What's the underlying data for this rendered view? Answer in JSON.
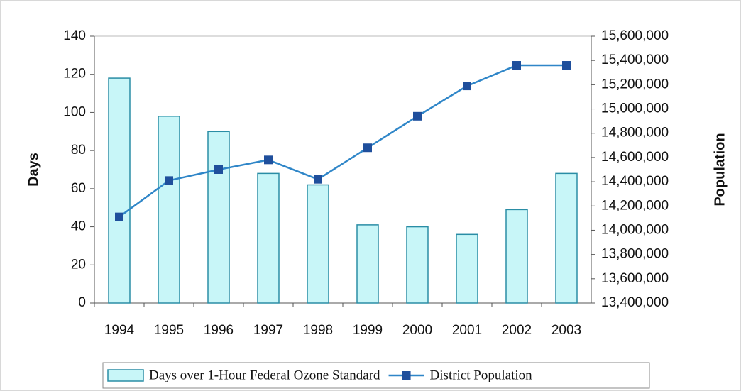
{
  "chart_data": {
    "type": "bar",
    "y_axis_label": "Days",
    "y2_axis_label": "Population",
    "categories": [
      "1994",
      "1995",
      "1996",
      "1997",
      "1998",
      "1999",
      "2000",
      "2001",
      "2002",
      "2003"
    ],
    "series": [
      {
        "name": "Days over 1-Hour Federal Ozone Standard",
        "type": "bar",
        "color": "#c8f6f8",
        "values": [
          118,
          98,
          90,
          68,
          62,
          41,
          40,
          36,
          49,
          68
        ]
      },
      {
        "name": "District Population",
        "type": "line",
        "axis": "y2",
        "color": "#2f86c8",
        "values": [
          14110000,
          14410000,
          14500000,
          14580000,
          14420000,
          14680000,
          14940000,
          15190000,
          15360000,
          15360000
        ]
      }
    ],
    "ylim": [
      0,
      140
    ],
    "yticks": [
      0,
      20,
      40,
      60,
      80,
      100,
      120,
      140
    ],
    "y2lim": [
      13400000,
      15600000
    ],
    "y2ticks": [
      {
        "value": 13400000,
        "label": "13,400,000"
      },
      {
        "value": 13600000,
        "label": "13,600,000"
      },
      {
        "value": 13800000,
        "label": "13,800,000"
      },
      {
        "value": 14000000,
        "label": "14,000,000"
      },
      {
        "value": 14200000,
        "label": "14,200,000"
      },
      {
        "value": 14400000,
        "label": "14,400,000"
      },
      {
        "value": 14600000,
        "label": "14,600,000"
      },
      {
        "value": 14800000,
        "label": "14,800,000"
      },
      {
        "value": 15000000,
        "label": "15,000,000"
      },
      {
        "value": 15200000,
        "label": "15,200,000"
      },
      {
        "value": 15400000,
        "label": "15,400,000"
      },
      {
        "value": 15600000,
        "label": "15,600,000"
      }
    ],
    "grid": false,
    "legend": "bottom"
  }
}
